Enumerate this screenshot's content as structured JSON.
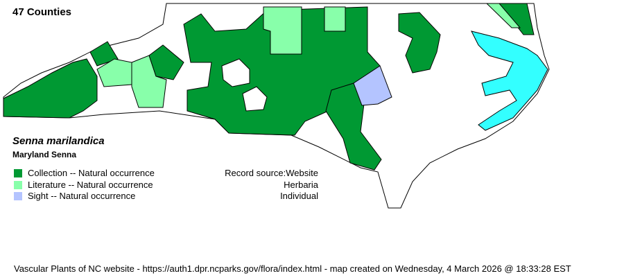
{
  "title": "47 Counties",
  "species": {
    "scientific": "Senna marilandica",
    "common": "Maryland Senna"
  },
  "legend": [
    {
      "label": "Collection -- Natural occurrence",
      "color": "#009933"
    },
    {
      "label": "Literature -- Natural occurrence",
      "color": "#88ffaa"
    },
    {
      "label": "Sight -- Natural occurrence",
      "color": "#b4c4ff"
    }
  ],
  "record_source": {
    "label": "Record source:Website",
    "lines": [
      "Herbaria",
      "Individual"
    ]
  },
  "colors": {
    "water": "#33ffff",
    "unrecorded": "#ffffff"
  },
  "footer": "Vascular Plants of NC website - https://auth1.dpr.ncparks.gov/flora/index.html - map created on Wednesday, 4 March 2026 @ 18:33:28 EST"
}
